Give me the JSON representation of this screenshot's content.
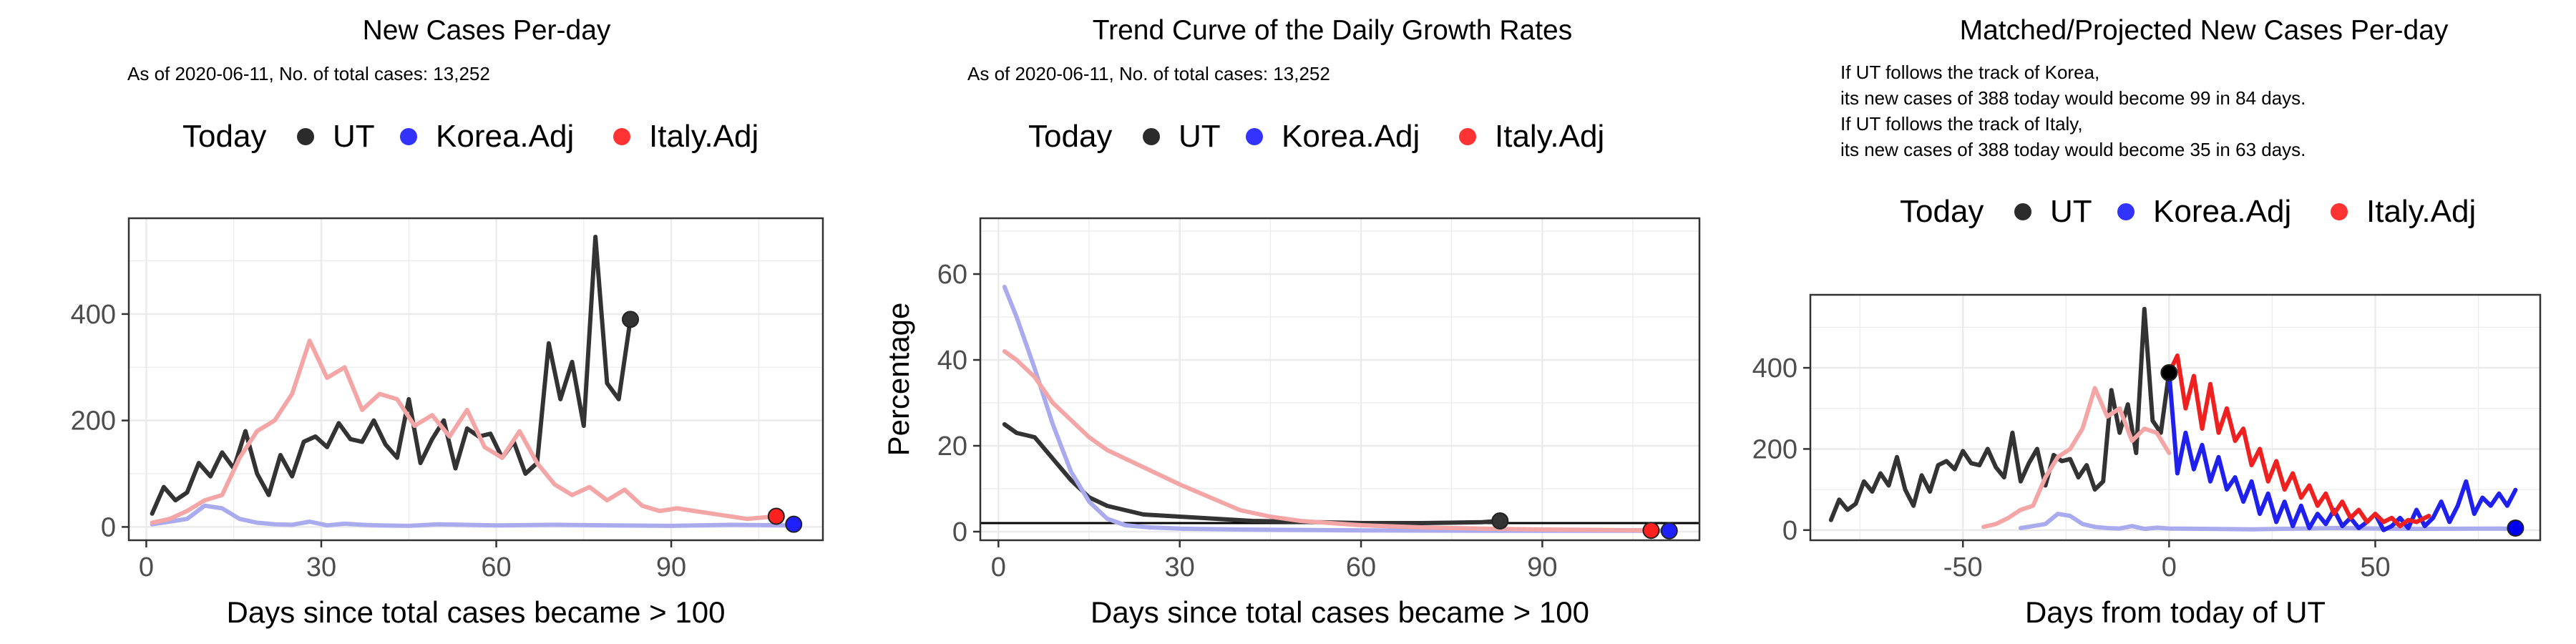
{
  "chart_data": [
    {
      "type": "line",
      "title": "New Cases Per-day",
      "subtitle": "As of 2020-06-11, No. of total cases: 13,252",
      "legend": [
        "Today",
        "UT",
        "Korea.Adj",
        "Italy.Adj"
      ],
      "legend_position": "top",
      "xlabel": "Days since total cases became > 100",
      "ylabel": "",
      "xlim": [
        -3,
        116
      ],
      "ylim": [
        -25,
        580
      ],
      "xticks": [
        0,
        30,
        60,
        90
      ],
      "yticks": [
        0,
        200,
        400
      ],
      "grid": true,
      "series": [
        {
          "name": "UT",
          "color": "#333333",
          "x": [
            1,
            3,
            5,
            7,
            9,
            11,
            13,
            15,
            17,
            19,
            21,
            23,
            25,
            27,
            29,
            31,
            33,
            35,
            37,
            39,
            41,
            43,
            45,
            47,
            49,
            51,
            53,
            55,
            57,
            59,
            61,
            63,
            65,
            67,
            69,
            71,
            73,
            75,
            77,
            79,
            81,
            83
          ],
          "y": [
            25,
            75,
            50,
            65,
            120,
            95,
            140,
            110,
            180,
            100,
            60,
            135,
            95,
            160,
            170,
            150,
            195,
            165,
            160,
            200,
            155,
            130,
            240,
            120,
            165,
            200,
            110,
            185,
            170,
            175,
            130,
            160,
            100,
            120,
            345,
            240,
            310,
            190,
            545,
            270,
            240,
            390
          ]
        },
        {
          "name": "Korea.Adj",
          "color": "#aaaaee",
          "x": [
            1,
            4,
            7,
            10,
            13,
            16,
            19,
            22,
            25,
            28,
            31,
            34,
            37,
            40,
            45,
            50,
            60,
            70,
            80,
            90,
            100,
            110
          ],
          "y": [
            5,
            10,
            15,
            40,
            35,
            15,
            8,
            5,
            4,
            10,
            3,
            6,
            4,
            3,
            2,
            5,
            3,
            4,
            3,
            2,
            4,
            3
          ]
        },
        {
          "name": "Italy.Adj",
          "color": "#f4a6a6",
          "x": [
            1,
            4,
            7,
            10,
            13,
            16,
            19,
            22,
            25,
            28,
            31,
            34,
            37,
            40,
            43,
            46,
            49,
            52,
            55,
            58,
            61,
            64,
            67,
            70,
            73,
            76,
            79,
            82,
            85,
            88,
            91,
            94,
            97,
            100,
            103,
            106,
            108
          ],
          "y": [
            8,
            15,
            30,
            50,
            60,
            130,
            180,
            200,
            250,
            350,
            280,
            300,
            220,
            250,
            240,
            190,
            210,
            170,
            220,
            150,
            130,
            180,
            120,
            80,
            60,
            75,
            50,
            70,
            40,
            30,
            35,
            30,
            25,
            20,
            15,
            18,
            20
          ]
        },
        {
          "name": "Today",
          "color": "#333333",
          "x": [
            83
          ],
          "y": [
            390
          ]
        },
        {
          "name": "Today",
          "color": "#ff2020",
          "x": [
            108
          ],
          "y": [
            20
          ]
        },
        {
          "name": "Today",
          "color": "#2020ff",
          "x": [
            111
          ],
          "y": [
            5
          ]
        }
      ]
    },
    {
      "type": "line",
      "title": "Trend Curve of the Daily Growth Rates",
      "subtitle": "As of 2020-06-11, No. of total cases: 13,252",
      "legend": [
        "Today",
        "UT",
        "Korea.Adj",
        "Italy.Adj"
      ],
      "legend_position": "top",
      "xlabel": "Days since total cases became > 100",
      "ylabel": "Percentage",
      "xlim": [
        -3,
        116
      ],
      "ylim": [
        -2,
        73
      ],
      "xticks": [
        0,
        30,
        60,
        90
      ],
      "yticks": [
        0,
        20,
        40,
        60
      ],
      "hline": 2,
      "grid": true,
      "series": [
        {
          "name": "UT",
          "color": "#333333",
          "x": [
            1,
            3,
            6,
            9,
            12,
            15,
            18,
            21,
            24,
            30,
            36,
            42,
            50,
            60,
            70,
            80,
            83
          ],
          "y": [
            25,
            23,
            22,
            17,
            12,
            8,
            6,
            5,
            4,
            3.5,
            3,
            2.5,
            2.3,
            2,
            2,
            2.2,
            2.5
          ]
        },
        {
          "name": "Korea.Adj",
          "color": "#aaaaee",
          "x": [
            1,
            3,
            6,
            9,
            12,
            15,
            18,
            21,
            25,
            30,
            40,
            50,
            60,
            80,
            100,
            111
          ],
          "y": [
            57,
            50,
            38,
            25,
            14,
            7,
            3,
            1.5,
            1,
            0.7,
            0.5,
            0.4,
            0.3,
            0.2,
            0.2,
            0.2
          ]
        },
        {
          "name": "Italy.Adj",
          "color": "#f4a6a6",
          "x": [
            1,
            3,
            6,
            9,
            12,
            15,
            18,
            21,
            24,
            27,
            30,
            35,
            40,
            45,
            50,
            60,
            70,
            80,
            90,
            100,
            108
          ],
          "y": [
            42,
            40,
            36,
            30,
            26,
            22,
            19,
            17,
            15,
            13,
            11,
            8,
            5,
            3.5,
            2.5,
            1.5,
            1,
            0.7,
            0.5,
            0.4,
            0.3
          ]
        },
        {
          "name": "Today",
          "color": "#333333",
          "x": [
            83
          ],
          "y": [
            2.5
          ]
        },
        {
          "name": "Today",
          "color": "#ff2020",
          "x": [
            108
          ],
          "y": [
            0.3
          ]
        },
        {
          "name": "Today",
          "color": "#2020ff",
          "x": [
            111
          ],
          "y": [
            0.2
          ]
        }
      ]
    },
    {
      "type": "line",
      "title": "Matched/Projected New Cases Per-day",
      "subtitle": [
        "If UT follows the track of Korea,",
        "its new cases of 388 today would become 99 in 84 days.",
        "If UT follows the track of Italy,",
        "its new cases of 388 today would become 35 in 63 days."
      ],
      "legend": [
        "Today",
        "UT",
        "Korea.Adj",
        "Italy.Adj"
      ],
      "legend_position": "top",
      "xlabel": "Days from today of UT",
      "ylabel": "",
      "xlim": [
        -87,
        90
      ],
      "ylim": [
        -25,
        580
      ],
      "xticks": [
        -50,
        0,
        50
      ],
      "yticks": [
        0,
        200,
        400
      ],
      "grid": true,
      "series": [
        {
          "name": "UT",
          "color": "#333333",
          "x": [
            -82,
            -80,
            -78,
            -76,
            -74,
            -72,
            -70,
            -68,
            -66,
            -64,
            -62,
            -60,
            -58,
            -56,
            -54,
            -52,
            -50,
            -48,
            -46,
            -44,
            -42,
            -40,
            -38,
            -36,
            -34,
            -32,
            -30,
            -28,
            -26,
            -24,
            -22,
            -20,
            -18,
            -16,
            -14,
            -12,
            -10,
            -8,
            -6,
            -4,
            -2,
            0
          ],
          "y": [
            25,
            75,
            50,
            65,
            120,
            95,
            140,
            110,
            180,
            100,
            60,
            135,
            95,
            160,
            170,
            150,
            195,
            165,
            160,
            200,
            155,
            130,
            240,
            120,
            165,
            200,
            110,
            185,
            170,
            175,
            130,
            160,
            100,
            120,
            345,
            240,
            310,
            190,
            545,
            270,
            240,
            390
          ]
        },
        {
          "name": "Korea.Adj",
          "color": "#aaaaee",
          "x": [
            -36,
            -33,
            -30,
            -27,
            -24,
            -21,
            -18,
            -15,
            -12,
            -9,
            -6,
            -3,
            0,
            10,
            20,
            40,
            60,
            80,
            84
          ],
          "y": [
            5,
            10,
            15,
            40,
            35,
            15,
            8,
            5,
            4,
            10,
            3,
            6,
            4,
            3,
            2,
            5,
            3,
            4,
            3
          ]
        },
        {
          "name": "Italy.Adj",
          "color": "#f4a6a6",
          "x": [
            -45,
            -42,
            -39,
            -36,
            -33,
            -30,
            -27,
            -24,
            -21,
            -18,
            -15,
            -12,
            -9,
            -6,
            -3,
            0
          ],
          "y": [
            8,
            15,
            30,
            50,
            60,
            130,
            180,
            200,
            250,
            350,
            280,
            300,
            220,
            250,
            240,
            190
          ]
        },
        {
          "name": "Korea.Adj",
          "color": "#2020ee",
          "x": [
            0,
            2,
            4,
            6,
            8,
            10,
            12,
            14,
            16,
            18,
            20,
            22,
            24,
            26,
            28,
            30,
            32,
            34,
            36,
            38,
            40,
            42,
            44,
            46,
            48,
            50,
            52,
            54,
            56,
            58,
            60,
            62,
            64,
            66,
            68,
            70,
            72,
            74,
            76,
            78,
            80,
            82,
            84
          ],
          "y": [
            388,
            140,
            240,
            150,
            210,
            120,
            180,
            100,
            130,
            70,
            120,
            40,
            90,
            20,
            70,
            10,
            60,
            5,
            40,
            15,
            50,
            10,
            30,
            5,
            20,
            40,
            0,
            10,
            30,
            5,
            50,
            10,
            30,
            70,
            20,
            60,
            120,
            40,
            80,
            60,
            90,
            60,
            99
          ]
        },
        {
          "name": "Italy.Adj",
          "color": "#ee2020",
          "x": [
            0,
            2,
            4,
            6,
            8,
            10,
            12,
            14,
            16,
            18,
            20,
            22,
            24,
            26,
            28,
            30,
            32,
            34,
            36,
            38,
            40,
            42,
            44,
            46,
            48,
            50,
            52,
            54,
            56,
            58,
            60,
            63
          ],
          "y": [
            388,
            430,
            300,
            380,
            250,
            360,
            240,
            300,
            220,
            250,
            160,
            200,
            120,
            170,
            100,
            140,
            80,
            110,
            60,
            90,
            40,
            70,
            30,
            50,
            20,
            40,
            20,
            30,
            10,
            25,
            20,
            35
          ]
        },
        {
          "name": "Today",
          "color": "#000000",
          "x": [
            0
          ],
          "y": [
            388
          ]
        },
        {
          "name": "Today",
          "color": "#0000ee",
          "x": [
            84
          ],
          "y": [
            5
          ]
        }
      ]
    }
  ]
}
